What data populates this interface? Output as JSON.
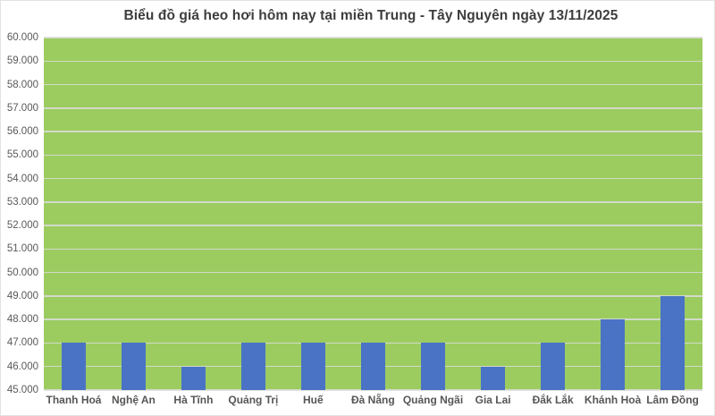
{
  "title": "Biểu đồ giá heo hơi hôm nay tại miền Trung - Tây Nguyên ngày 13/11/2025",
  "chart_data": {
    "type": "bar",
    "title": "Biểu đồ giá heo hơi hôm nay tại miền Trung - Tây Nguyên ngày 13/11/2025",
    "categories": [
      "Thanh Hoá",
      "Nghệ An",
      "Hà Tĩnh",
      "Quảng Trị",
      "Huế",
      "Đà Nẵng",
      "Quảng Ngãi",
      "Gia Lai",
      "Đắk Lắk",
      "Khánh Hoà",
      "Lâm Đồng"
    ],
    "values": [
      47000,
      47000,
      46000,
      47000,
      47000,
      47000,
      47000,
      46000,
      47000,
      48000,
      49000
    ],
    "xlabel": "",
    "ylabel": "",
    "ylim": [
      45000,
      60000
    ],
    "ytick_step": 1000,
    "ytick_labels": [
      "45.000",
      "46.000",
      "47.000",
      "48.000",
      "49.000",
      "50.000",
      "51.000",
      "52.000",
      "53.000",
      "54.000",
      "55.000",
      "56.000",
      "57.000",
      "58.000",
      "59.000",
      "60.000"
    ],
    "grid": true,
    "legend_position": "none",
    "colors": {
      "bar": "#4a73c5",
      "plot_background": "#9ccc60",
      "gridline": "#dcdcdc",
      "axis_text": "#595959",
      "category_text": "#565656",
      "title_text": "#3d3d3d",
      "frame_border": "#e2e2e2",
      "page_background": "#ffffff"
    }
  }
}
